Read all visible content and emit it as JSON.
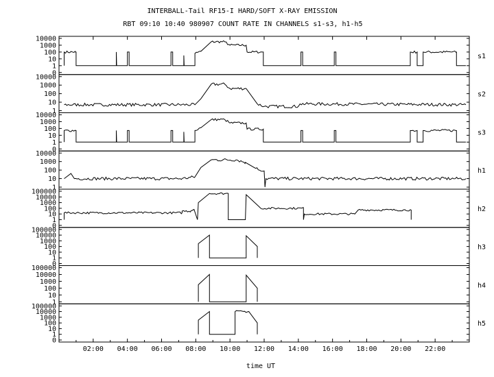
{
  "chart_data": {
    "type": "line",
    "title": "INTERBALL-Tail RF15-I HARD/SOFT X-RAY EMISSION",
    "subtitle": "RBT 09:10 10:40 980907  COUNT RATE IN CHANNELS s1-s3, h1-h5",
    "xlabel": "time UT",
    "xlim": [
      0,
      24
    ],
    "x_ticks": [
      {
        "v": 2,
        "label": "02:00"
      },
      {
        "v": 4,
        "label": "04:00"
      },
      {
        "v": 6,
        "label": "06:00"
      },
      {
        "v": 8,
        "label": "08:00"
      },
      {
        "v": 10,
        "label": "10:00"
      },
      {
        "v": 12,
        "label": "12:00"
      },
      {
        "v": 14,
        "label": "14:00"
      },
      {
        "v": 16,
        "label": "16:00"
      },
      {
        "v": 18,
        "label": "18:00"
      },
      {
        "v": 20,
        "label": "20:00"
      },
      {
        "v": 22,
        "label": "22:00"
      }
    ],
    "y_scale": "log",
    "panels": [
      {
        "name": "s1",
        "ymax_exp": 4,
        "y_ticks": [
          "10000",
          "1000",
          "100",
          "10",
          "1",
          "0"
        ],
        "series": [
          {
            "x": 0.3,
            "y": 0
          },
          {
            "x": 0.3,
            "y": 2.0
          },
          {
            "x": 0.95,
            "y": 2.0
          },
          {
            "x": 1.0,
            "y": 2.0
          },
          {
            "x": 1.0,
            "y": 0
          },
          {
            "x": 3.35,
            "y": 0
          },
          {
            "x": 3.35,
            "y": 2.0
          },
          {
            "x": 3.37,
            "y": 0
          },
          {
            "x": 4.0,
            "y": 0
          },
          {
            "x": 4.0,
            "y": 2.0
          },
          {
            "x": 4.1,
            "y": 2.0
          },
          {
            "x": 4.1,
            "y": 0
          },
          {
            "x": 6.55,
            "y": 0
          },
          {
            "x": 6.55,
            "y": 2.0
          },
          {
            "x": 6.65,
            "y": 2.0
          },
          {
            "x": 6.65,
            "y": 0
          },
          {
            "x": 7.3,
            "y": 0
          },
          {
            "x": 7.3,
            "y": 1.5
          },
          {
            "x": 7.32,
            "y": 0
          },
          {
            "x": 7.95,
            "y": 0
          },
          {
            "x": 7.95,
            "y": 1.8
          },
          {
            "x": 8.3,
            "y": 2.1
          },
          {
            "x": 8.9,
            "y": 3.5
          },
          {
            "x": 9.7,
            "y": 3.5
          },
          {
            "x": 10.0,
            "y": 3.0
          },
          {
            "x": 10.95,
            "y": 3.0
          },
          {
            "x": 11.0,
            "y": 2.0
          },
          {
            "x": 11.95,
            "y": 2.0
          },
          {
            "x": 11.95,
            "y": 0
          },
          {
            "x": 14.15,
            "y": 0
          },
          {
            "x": 14.15,
            "y": 2.0
          },
          {
            "x": 14.25,
            "y": 2.0
          },
          {
            "x": 14.25,
            "y": 0
          },
          {
            "x": 16.1,
            "y": 0
          },
          {
            "x": 16.1,
            "y": 2.0
          },
          {
            "x": 16.2,
            "y": 2.0
          },
          {
            "x": 16.2,
            "y": 0
          },
          {
            "x": 20.55,
            "y": 0
          },
          {
            "x": 20.55,
            "y": 2.0
          },
          {
            "x": 20.95,
            "y": 2.0
          },
          {
            "x": 20.95,
            "y": 0
          },
          {
            "x": 21.3,
            "y": 0
          },
          {
            "x": 21.3,
            "y": 2.0
          },
          {
            "x": 23.25,
            "y": 2.0
          },
          {
            "x": 23.25,
            "y": 0
          },
          {
            "x": 23.8,
            "y": 0
          }
        ]
      },
      {
        "name": "s2",
        "ymax_exp": 4,
        "y_ticks": [
          "10000",
          "1000",
          "100",
          "10",
          "1"
        ],
        "series": [
          {
            "x": 0.3,
            "y": 0.7
          },
          {
            "x": 7.95,
            "y": 0.7
          },
          {
            "x": 8.3,
            "y": 1.4
          },
          {
            "x": 8.9,
            "y": 3.1
          },
          {
            "x": 9.7,
            "y": 3.1
          },
          {
            "x": 10.0,
            "y": 2.6
          },
          {
            "x": 10.95,
            "y": 2.6
          },
          {
            "x": 11.6,
            "y": 0.8
          },
          {
            "x": 12.0,
            "y": 0.5
          },
          {
            "x": 14.0,
            "y": 0.5
          },
          {
            "x": 14.1,
            "y": 0.8
          },
          {
            "x": 23.8,
            "y": 0.7
          }
        ]
      },
      {
        "name": "s3",
        "ymax_exp": 4,
        "y_ticks": [
          "10000",
          "1000",
          "100",
          "10",
          "1",
          "0"
        ],
        "series": [
          {
            "x": 0.3,
            "y": 0
          },
          {
            "x": 0.3,
            "y": 1.7
          },
          {
            "x": 0.95,
            "y": 1.7
          },
          {
            "x": 1.0,
            "y": 1.7
          },
          {
            "x": 1.0,
            "y": 0
          },
          {
            "x": 3.35,
            "y": 0
          },
          {
            "x": 3.35,
            "y": 1.7
          },
          {
            "x": 3.37,
            "y": 0
          },
          {
            "x": 4.0,
            "y": 0
          },
          {
            "x": 4.0,
            "y": 1.7
          },
          {
            "x": 4.1,
            "y": 1.7
          },
          {
            "x": 4.1,
            "y": 0
          },
          {
            "x": 6.55,
            "y": 0
          },
          {
            "x": 6.55,
            "y": 1.7
          },
          {
            "x": 6.65,
            "y": 1.7
          },
          {
            "x": 6.65,
            "y": 0
          },
          {
            "x": 7.3,
            "y": 0
          },
          {
            "x": 7.3,
            "y": 1.5
          },
          {
            "x": 7.32,
            "y": 0
          },
          {
            "x": 7.95,
            "y": 0
          },
          {
            "x": 7.95,
            "y": 1.7
          },
          {
            "x": 8.3,
            "y": 2.1
          },
          {
            "x": 8.9,
            "y": 3.3
          },
          {
            "x": 9.7,
            "y": 3.3
          },
          {
            "x": 10.0,
            "y": 2.8
          },
          {
            "x": 10.95,
            "y": 2.8
          },
          {
            "x": 11.0,
            "y": 1.9
          },
          {
            "x": 11.95,
            "y": 1.9
          },
          {
            "x": 11.95,
            "y": 0
          },
          {
            "x": 14.15,
            "y": 0
          },
          {
            "x": 14.15,
            "y": 1.7
          },
          {
            "x": 14.25,
            "y": 1.7
          },
          {
            "x": 14.25,
            "y": 0
          },
          {
            "x": 16.1,
            "y": 0
          },
          {
            "x": 16.1,
            "y": 1.7
          },
          {
            "x": 16.2,
            "y": 1.7
          },
          {
            "x": 16.2,
            "y": 0
          },
          {
            "x": 20.55,
            "y": 0
          },
          {
            "x": 20.55,
            "y": 1.7
          },
          {
            "x": 20.95,
            "y": 1.7
          },
          {
            "x": 20.95,
            "y": 0
          },
          {
            "x": 21.3,
            "y": 0
          },
          {
            "x": 21.3,
            "y": 1.7
          },
          {
            "x": 23.25,
            "y": 1.7
          },
          {
            "x": 23.25,
            "y": 0
          },
          {
            "x": 23.8,
            "y": 0
          }
        ]
      },
      {
        "name": "h1",
        "ymax_exp": 4,
        "y_ticks": [
          "10000",
          "1000",
          "100",
          "10",
          "1"
        ],
        "series": [
          {
            "x": 0.3,
            "y": 1.0
          },
          {
            "x": 0.7,
            "y": 1.6
          },
          {
            "x": 0.9,
            "y": 1.0
          },
          {
            "x": 7.2,
            "y": 1.0
          },
          {
            "x": 7.95,
            "y": 1.2
          },
          {
            "x": 8.3,
            "y": 2.3
          },
          {
            "x": 8.9,
            "y": 3.2
          },
          {
            "x": 10.4,
            "y": 3.2
          },
          {
            "x": 10.9,
            "y": 2.9
          },
          {
            "x": 11.5,
            "y": 2.2
          },
          {
            "x": 12.0,
            "y": 1.9
          },
          {
            "x": 12.05,
            "y": 0
          },
          {
            "x": 12.1,
            "y": 1.0
          },
          {
            "x": 23.8,
            "y": 1.0
          }
        ]
      },
      {
        "name": "h2",
        "ymax_exp": 5,
        "y_ticks": [
          "100000",
          "10000",
          "1000",
          "100",
          "10",
          "1",
          "0"
        ],
        "series": [
          {
            "x": 0.3,
            "y": 0
          },
          {
            "x": 0.3,
            "y": 1.2
          },
          {
            "x": 2.5,
            "y": 1.2
          },
          {
            "x": 7.2,
            "y": 1.2
          },
          {
            "x": 7.2,
            "y": 1.5
          },
          {
            "x": 7.7,
            "y": 1.5
          },
          {
            "x": 7.9,
            "y": 1.8
          },
          {
            "x": 8.1,
            "y": 0
          },
          {
            "x": 8.15,
            "y": 3.0
          },
          {
            "x": 8.8,
            "y": 4.6
          },
          {
            "x": 9.9,
            "y": 4.6
          },
          {
            "x": 9.9,
            "y": 0
          },
          {
            "x": 10.9,
            "y": 0
          },
          {
            "x": 10.95,
            "y": 4.4
          },
          {
            "x": 11.7,
            "y": 2.3
          },
          {
            "x": 11.8,
            "y": 2.0
          },
          {
            "x": 14.3,
            "y": 2.0
          },
          {
            "x": 14.3,
            "y": 0
          },
          {
            "x": 14.35,
            "y": 1.0
          },
          {
            "x": 17.3,
            "y": 1.0
          },
          {
            "x": 17.5,
            "y": 1.7
          },
          {
            "x": 20.6,
            "y": 1.7
          },
          {
            "x": 20.6,
            "y": 0
          }
        ]
      },
      {
        "name": "h3",
        "ymax_exp": 5,
        "y_ticks": [
          "100000",
          "10000",
          "1000",
          "100",
          "10",
          "1",
          "0"
        ],
        "series": [
          {
            "x": 8.15,
            "y": 0
          },
          {
            "x": 8.15,
            "y": 2.5
          },
          {
            "x": 8.8,
            "y": 4.0
          },
          {
            "x": 8.8,
            "y": 0
          },
          {
            "x": 10.95,
            "y": 0
          },
          {
            "x": 10.95,
            "y": 3.9
          },
          {
            "x": 11.6,
            "y": 2.0
          },
          {
            "x": 11.6,
            "y": 0
          }
        ]
      },
      {
        "name": "h4",
        "ymax_exp": 5,
        "y_ticks": [
          "100000",
          "10000",
          "1000",
          "100",
          "10",
          "1"
        ],
        "series": [
          {
            "x": 8.15,
            "y": 0
          },
          {
            "x": 8.15,
            "y": 2.5
          },
          {
            "x": 8.8,
            "y": 4.0
          },
          {
            "x": 8.8,
            "y": 0
          },
          {
            "x": 10.95,
            "y": 0
          },
          {
            "x": 10.95,
            "y": 3.9
          },
          {
            "x": 11.6,
            "y": 2.0
          },
          {
            "x": 11.6,
            "y": 0
          }
        ]
      },
      {
        "name": "h5",
        "ymax_exp": 5,
        "y_ticks": [
          "100000",
          "10000",
          "1000",
          "100",
          "10",
          "1",
          "0"
        ],
        "series": [
          {
            "x": 8.15,
            "y": 0
          },
          {
            "x": 8.15,
            "y": 2.5
          },
          {
            "x": 8.8,
            "y": 4.0
          },
          {
            "x": 8.8,
            "y": 0
          },
          {
            "x": 10.3,
            "y": 0
          },
          {
            "x": 10.3,
            "y": 4.0
          },
          {
            "x": 11.1,
            "y": 4.0
          },
          {
            "x": 11.6,
            "y": 2.0
          },
          {
            "x": 11.6,
            "y": 0
          }
        ]
      }
    ],
    "grid": false,
    "line_color": "#000000"
  }
}
